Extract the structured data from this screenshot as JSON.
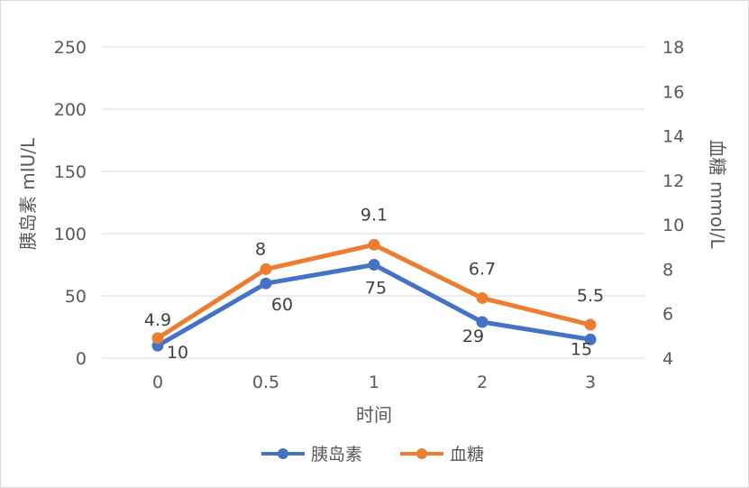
{
  "chart_data": {
    "type": "line",
    "x": [
      "0",
      "0.5",
      "1",
      "2",
      "3"
    ],
    "xlabel": "时间",
    "y_left": {
      "label": "胰岛素 mIU/L",
      "ylim": [
        0,
        250
      ],
      "ticks": [
        0,
        50,
        100,
        150,
        200,
        250
      ]
    },
    "y_right": {
      "label": "血糖 mmol/L",
      "ylim": [
        4,
        18
      ],
      "ticks": [
        4,
        6,
        8,
        10,
        12,
        14,
        16,
        18
      ]
    },
    "grid": true,
    "legend_position": "bottom",
    "series": [
      {
        "name": "胰岛素",
        "axis": "left",
        "color": "#4472C4",
        "values": [
          10,
          60,
          75,
          29,
          15
        ],
        "labels": [
          "10",
          "60",
          "75",
          "29",
          "15"
        ]
      },
      {
        "name": "血糖",
        "axis": "right",
        "color": "#ED7D31",
        "values": [
          4.9,
          8,
          9.1,
          6.7,
          5.5
        ],
        "labels": [
          "4.9",
          "8",
          "9.1",
          "6.7",
          "5.5"
        ]
      }
    ]
  }
}
